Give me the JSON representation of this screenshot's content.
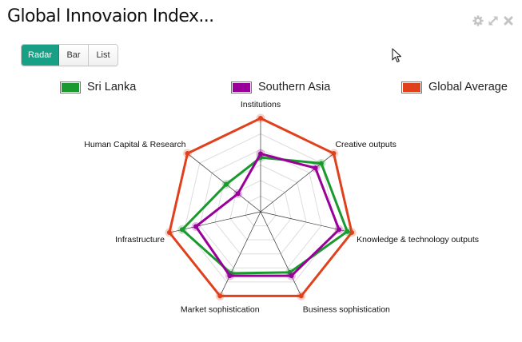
{
  "window": {
    "title": "Global Innovaion Index...",
    "controls": [
      "gear-icon",
      "expand-icon",
      "close-icon"
    ]
  },
  "view_toggle": {
    "buttons": [
      {
        "label": "Radar",
        "active": true
      },
      {
        "label": "Bar",
        "active": false
      },
      {
        "label": "List",
        "active": false
      }
    ]
  },
  "legend": [
    {
      "label": "Sri Lanka",
      "color": "#1a9a2e"
    },
    {
      "label": "Southern Asia",
      "color": "#990099"
    },
    {
      "label": "Global Average",
      "color": "#e0411c"
    }
  ],
  "chart_data": {
    "type": "radar",
    "axes": [
      "Institutions",
      "Creative outputs",
      "Knowledge & technology outputs",
      "Business sophistication",
      "Market sophistication",
      "Infrastructure",
      "Human Capital & Research"
    ],
    "range": [
      0,
      1
    ],
    "gridlines": 6,
    "series": [
      {
        "name": "Global Average",
        "color": "#e0411c",
        "values": [
          1.0,
          1.0,
          1.0,
          1.0,
          1.0,
          1.0,
          1.0
        ]
      },
      {
        "name": "Sri Lanka",
        "color": "#1a9a2e",
        "values": [
          0.58,
          0.83,
          0.95,
          0.72,
          0.73,
          0.86,
          0.47
        ]
      },
      {
        "name": "Southern Asia",
        "color": "#990099",
        "values": [
          0.62,
          0.75,
          0.86,
          0.76,
          0.76,
          0.71,
          0.31
        ]
      }
    ]
  }
}
